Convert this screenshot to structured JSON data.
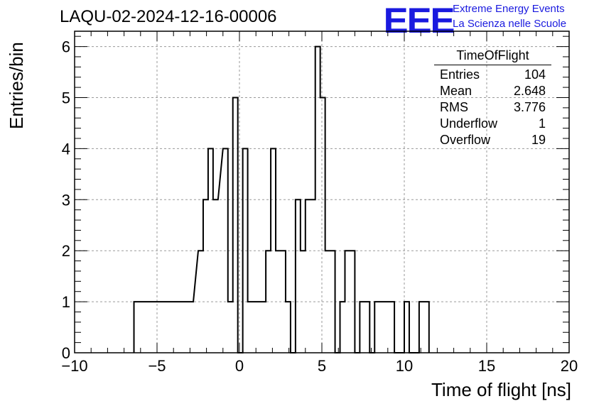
{
  "title": "LAQU-02-2024-12-16-00006",
  "logo": {
    "mark": "EEE",
    "line1": "Extreme Energy Events",
    "line2": "La Scienza nelle Scuole",
    "color": "#1a1adf"
  },
  "stats": {
    "title": "TimeOfFlight",
    "rows": [
      {
        "label": "Entries",
        "value": "104"
      },
      {
        "label": "Mean",
        "value": "2.648"
      },
      {
        "label": "RMS",
        "value": "3.776"
      },
      {
        "label": "Underflow",
        "value": "1"
      },
      {
        "label": "Overflow",
        "value": "19"
      }
    ]
  },
  "chart_data": {
    "type": "bar",
    "histogram": true,
    "title": "LAQU-02-2024-12-16-00006",
    "xlabel": "Time of flight [ns]",
    "ylabel": "Entries/bin",
    "xlim": [
      -10,
      20
    ],
    "ylim": [
      0,
      6.3
    ],
    "grid": true,
    "bin_width": 0.3,
    "xticks": [
      -10,
      -5,
      0,
      5,
      10,
      15,
      20
    ],
    "xtick_labels": [
      "−10",
      "−5",
      "0",
      "5",
      "10",
      "15",
      "20"
    ],
    "yticks": [
      0,
      1,
      2,
      3,
      4,
      5,
      6
    ],
    "bins": [
      {
        "x0": -6.4,
        "x1": -6.1,
        "count": 1
      },
      {
        "x0": -4.6,
        "x1": -4.0,
        "count": 1
      },
      {
        "x0": -3.1,
        "x1": -2.8,
        "count": 1
      },
      {
        "x0": -2.5,
        "x1": -2.2,
        "count": 2
      },
      {
        "x0": -2.2,
        "x1": -1.9,
        "count": 3
      },
      {
        "x0": -1.9,
        "x1": -1.6,
        "count": 4
      },
      {
        "x0": -1.6,
        "x1": -1.3,
        "count": 3
      },
      {
        "x0": -1.0,
        "x1": -0.7,
        "count": 4
      },
      {
        "x0": -0.7,
        "x1": -0.4,
        "count": 1
      },
      {
        "x0": -0.4,
        "x1": -0.1,
        "count": 5
      },
      {
        "x0": -0.1,
        "x1": 0.2,
        "count": 0
      },
      {
        "x0": 0.2,
        "x1": 0.5,
        "count": 4
      },
      {
        "x0": 0.5,
        "x1": 1.6,
        "count": 1
      },
      {
        "x0": 1.6,
        "x1": 1.9,
        "count": 2
      },
      {
        "x0": 1.9,
        "x1": 2.2,
        "count": 4
      },
      {
        "x0": 2.2,
        "x1": 2.8,
        "count": 2
      },
      {
        "x0": 2.8,
        "x1": 3.1,
        "count": 1
      },
      {
        "x0": 3.1,
        "x1": 3.4,
        "count": 0
      },
      {
        "x0": 3.4,
        "x1": 3.7,
        "count": 3
      },
      {
        "x0": 3.7,
        "x1": 4.0,
        "count": 2
      },
      {
        "x0": 4.0,
        "x1": 4.3,
        "count": 3
      },
      {
        "x0": 4.3,
        "x1": 4.6,
        "count": 3
      },
      {
        "x0": 4.6,
        "x1": 4.9,
        "count": 6
      },
      {
        "x0": 4.9,
        "x1": 5.2,
        "count": 5
      },
      {
        "x0": 5.2,
        "x1": 5.8,
        "count": 2
      },
      {
        "x0": 5.8,
        "x1": 6.1,
        "count": 0
      },
      {
        "x0": 6.1,
        "x1": 6.4,
        "count": 1
      },
      {
        "x0": 6.4,
        "x1": 7.0,
        "count": 2
      },
      {
        "x0": 7.0,
        "x1": 7.3,
        "count": 0
      },
      {
        "x0": 7.3,
        "x1": 7.9,
        "count": 1
      },
      {
        "x0": 7.9,
        "x1": 8.2,
        "count": 0
      },
      {
        "x0": 8.2,
        "x1": 9.4,
        "count": 1
      },
      {
        "x0": 9.4,
        "x1": 10.0,
        "count": 0
      },
      {
        "x0": 10.0,
        "x1": 10.3,
        "count": 1
      },
      {
        "x0": 10.3,
        "x1": 10.9,
        "count": 0
      },
      {
        "x0": 10.9,
        "x1": 11.5,
        "count": 1
      }
    ]
  }
}
